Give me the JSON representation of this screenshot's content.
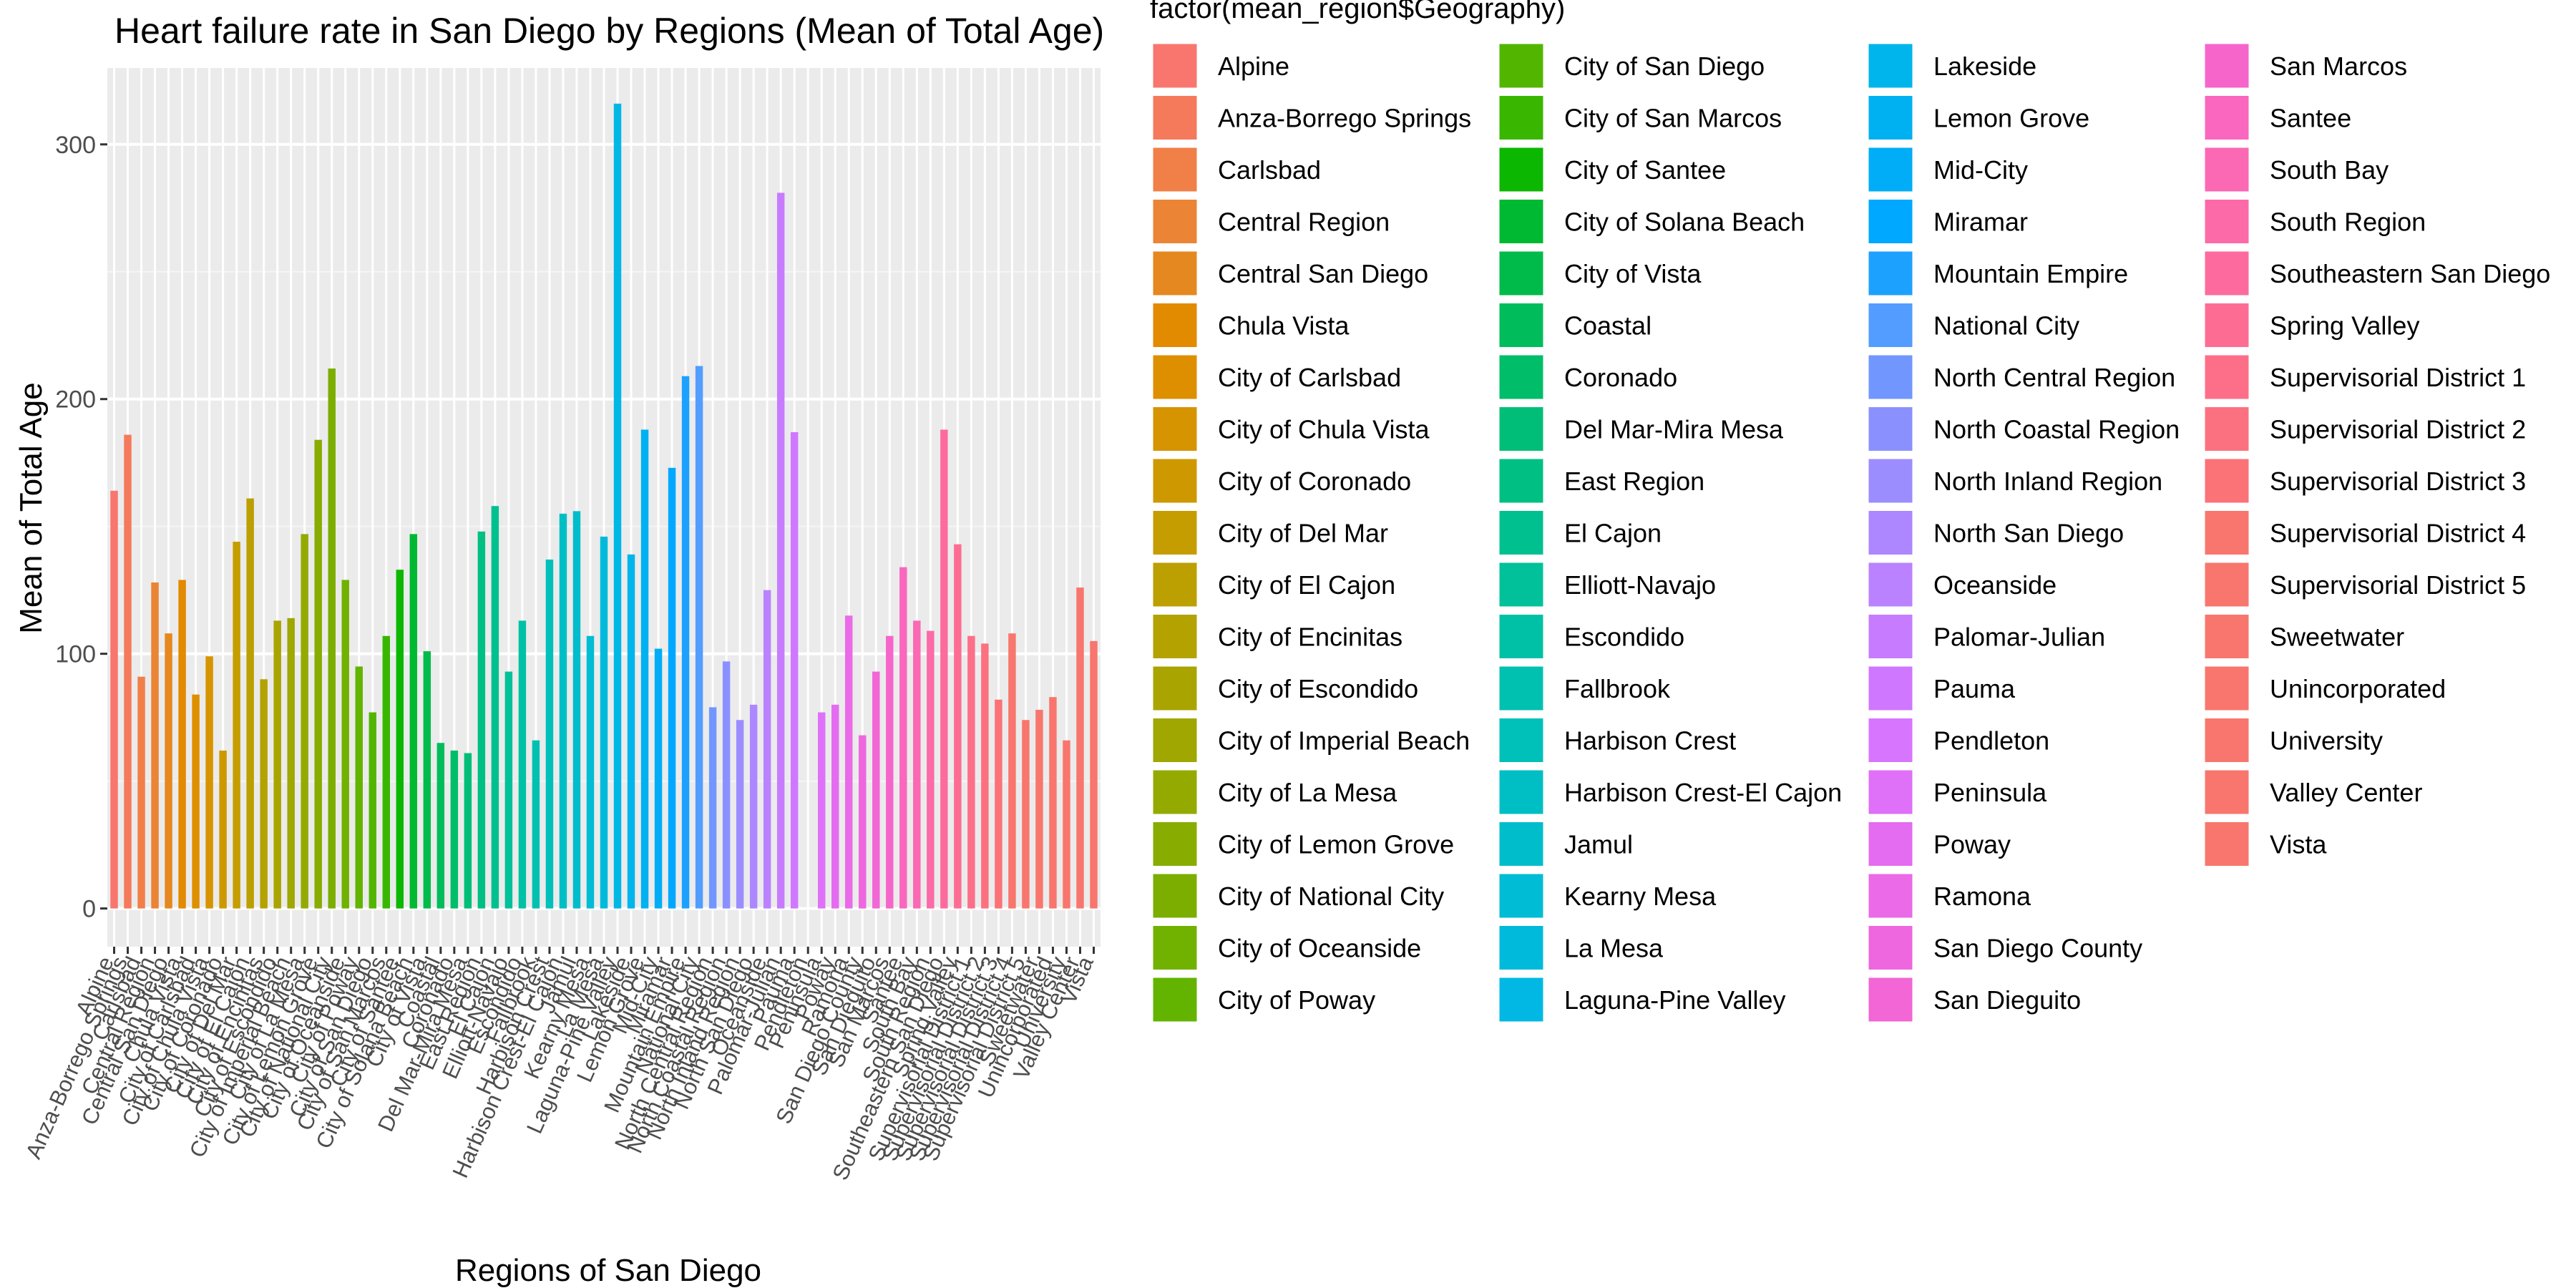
{
  "chart_data": {
    "type": "bar",
    "title": "Heart failure rate in San Diego by Regions (Mean of Total Age)",
    "xlabel": "Regions of San Diego",
    "ylabel": "Mean of Total Age",
    "ylim": [
      -15,
      330
    ],
    "yticks": [
      0,
      100,
      200,
      300
    ],
    "grid": true,
    "legend_title": "factor(mean_region$Geography)",
    "legend_position": "right",
    "categories": [
      "Alpine",
      "Anza-Borrego Springs",
      "Carlsbad",
      "Central Region",
      "Central San Diego",
      "Chula Vista",
      "City of Carlsbad",
      "City of Chula Vista",
      "City of Coronado",
      "City of Del Mar",
      "City of El Cajon",
      "City of Encinitas",
      "City of Escondido",
      "City of Imperial Beach",
      "City of La Mesa",
      "City of Lemon Grove",
      "City of National City",
      "City of Oceanside",
      "City of Poway",
      "City of San Diego",
      "City of San Marcos",
      "City of Santee",
      "City of Solana Beach",
      "City of Vista",
      "Coastal",
      "Coronado",
      "Del Mar-Mira Mesa",
      "East Region",
      "El Cajon",
      "Elliott-Navajo",
      "Escondido",
      "Fallbrook",
      "Harbison Crest",
      "Harbison Crest-El Cajon",
      "Jamul",
      "Kearny Mesa",
      "La Mesa",
      "Laguna-Pine Valley",
      "Lakeside",
      "Lemon Grove",
      "Mid-City",
      "Miramar",
      "Mountain Empire",
      "National City",
      "North Central Region",
      "North Coastal Region",
      "North Inland Region",
      "North San Diego",
      "Oceanside",
      "Palomar-Julian",
      "Pauma",
      "Pendleton",
      "Peninsula",
      "Poway",
      "Ramona",
      "San Diego County",
      "San Dieguito",
      "San Marcos",
      "Santee",
      "South Bay",
      "South Region",
      "Southeastern San Diego",
      "Spring Valley",
      "Supervisorial District 1",
      "Supervisorial District 2",
      "Supervisorial District 3",
      "Supervisorial District 4",
      "Supervisorial District 5",
      "Sweetwater",
      "Unincorporated",
      "University",
      "Valley Center",
      "Vista"
    ],
    "values": [
      164,
      186,
      91,
      128,
      108,
      129,
      84,
      99,
      62,
      144,
      161,
      90,
      113,
      114,
      147,
      184,
      212,
      129,
      95,
      77,
      107,
      133,
      147,
      101,
      65,
      62,
      61,
      148,
      158,
      93,
      113,
      66,
      137,
      155,
      156,
      107,
      146,
      316,
      139,
      188,
      102,
      173,
      209,
      213,
      79,
      97,
      74,
      80,
      125,
      281,
      187,
      0,
      77,
      80,
      115,
      68,
      93,
      107,
      134,
      113,
      109,
      188,
      143,
      107,
      104,
      82,
      108,
      74,
      78,
      83,
      66,
      126,
      105
    ],
    "colors": [
      "#F8766D",
      "#F47A5B",
      "#F07F48",
      "#EB8435",
      "#E5881F",
      "#E28A00",
      "#DE8F00",
      "#D69400",
      "#CE9900",
      "#C69D00",
      "#BC9F00",
      "#B3A200",
      "#A9A400",
      "#9FA700",
      "#94AA00",
      "#88AC00",
      "#7CAE00",
      "#71B200",
      "#63B400",
      "#52B600",
      "#39B700",
      "#0CB702",
      "#00B932",
      "#00BA4A",
      "#00BC5B",
      "#00BD69",
      "#00BE77",
      "#00BF83",
      "#00C08F",
      "#00C19A",
      "#00C1A6",
      "#00C0B0",
      "#00C0BA",
      "#00BFC4",
      "#00BDCC",
      "#00BCD4",
      "#00BADB",
      "#00B8E3",
      "#00B5EB",
      "#00B1F1",
      "#00ADF6",
      "#00A8FF",
      "#1DA1FF",
      "#529DFF",
      "#7197FF",
      "#8A91FF",
      "#9C8DFF",
      "#AD87FF",
      "#BB82FF",
      "#C77CFF",
      "#D077FF",
      "#D875FF",
      "#DF70F8",
      "#E46CF0",
      "#EA6AE8",
      "#EE67DE",
      "#F266D5",
      "#F665CA",
      "#F967BE",
      "#FB68B3",
      "#FC6AA8",
      "#FD6B9E",
      "#FD6D93",
      "#FD6F89",
      "#FC717F",
      "#FB7277",
      "#F8766D",
      "#F8766D",
      "#F8766D",
      "#F8766D",
      "#F8766D",
      "#F8766D",
      "#F8766D"
    ]
  },
  "legend": {
    "title": "factor(mean_region$Geography)"
  }
}
